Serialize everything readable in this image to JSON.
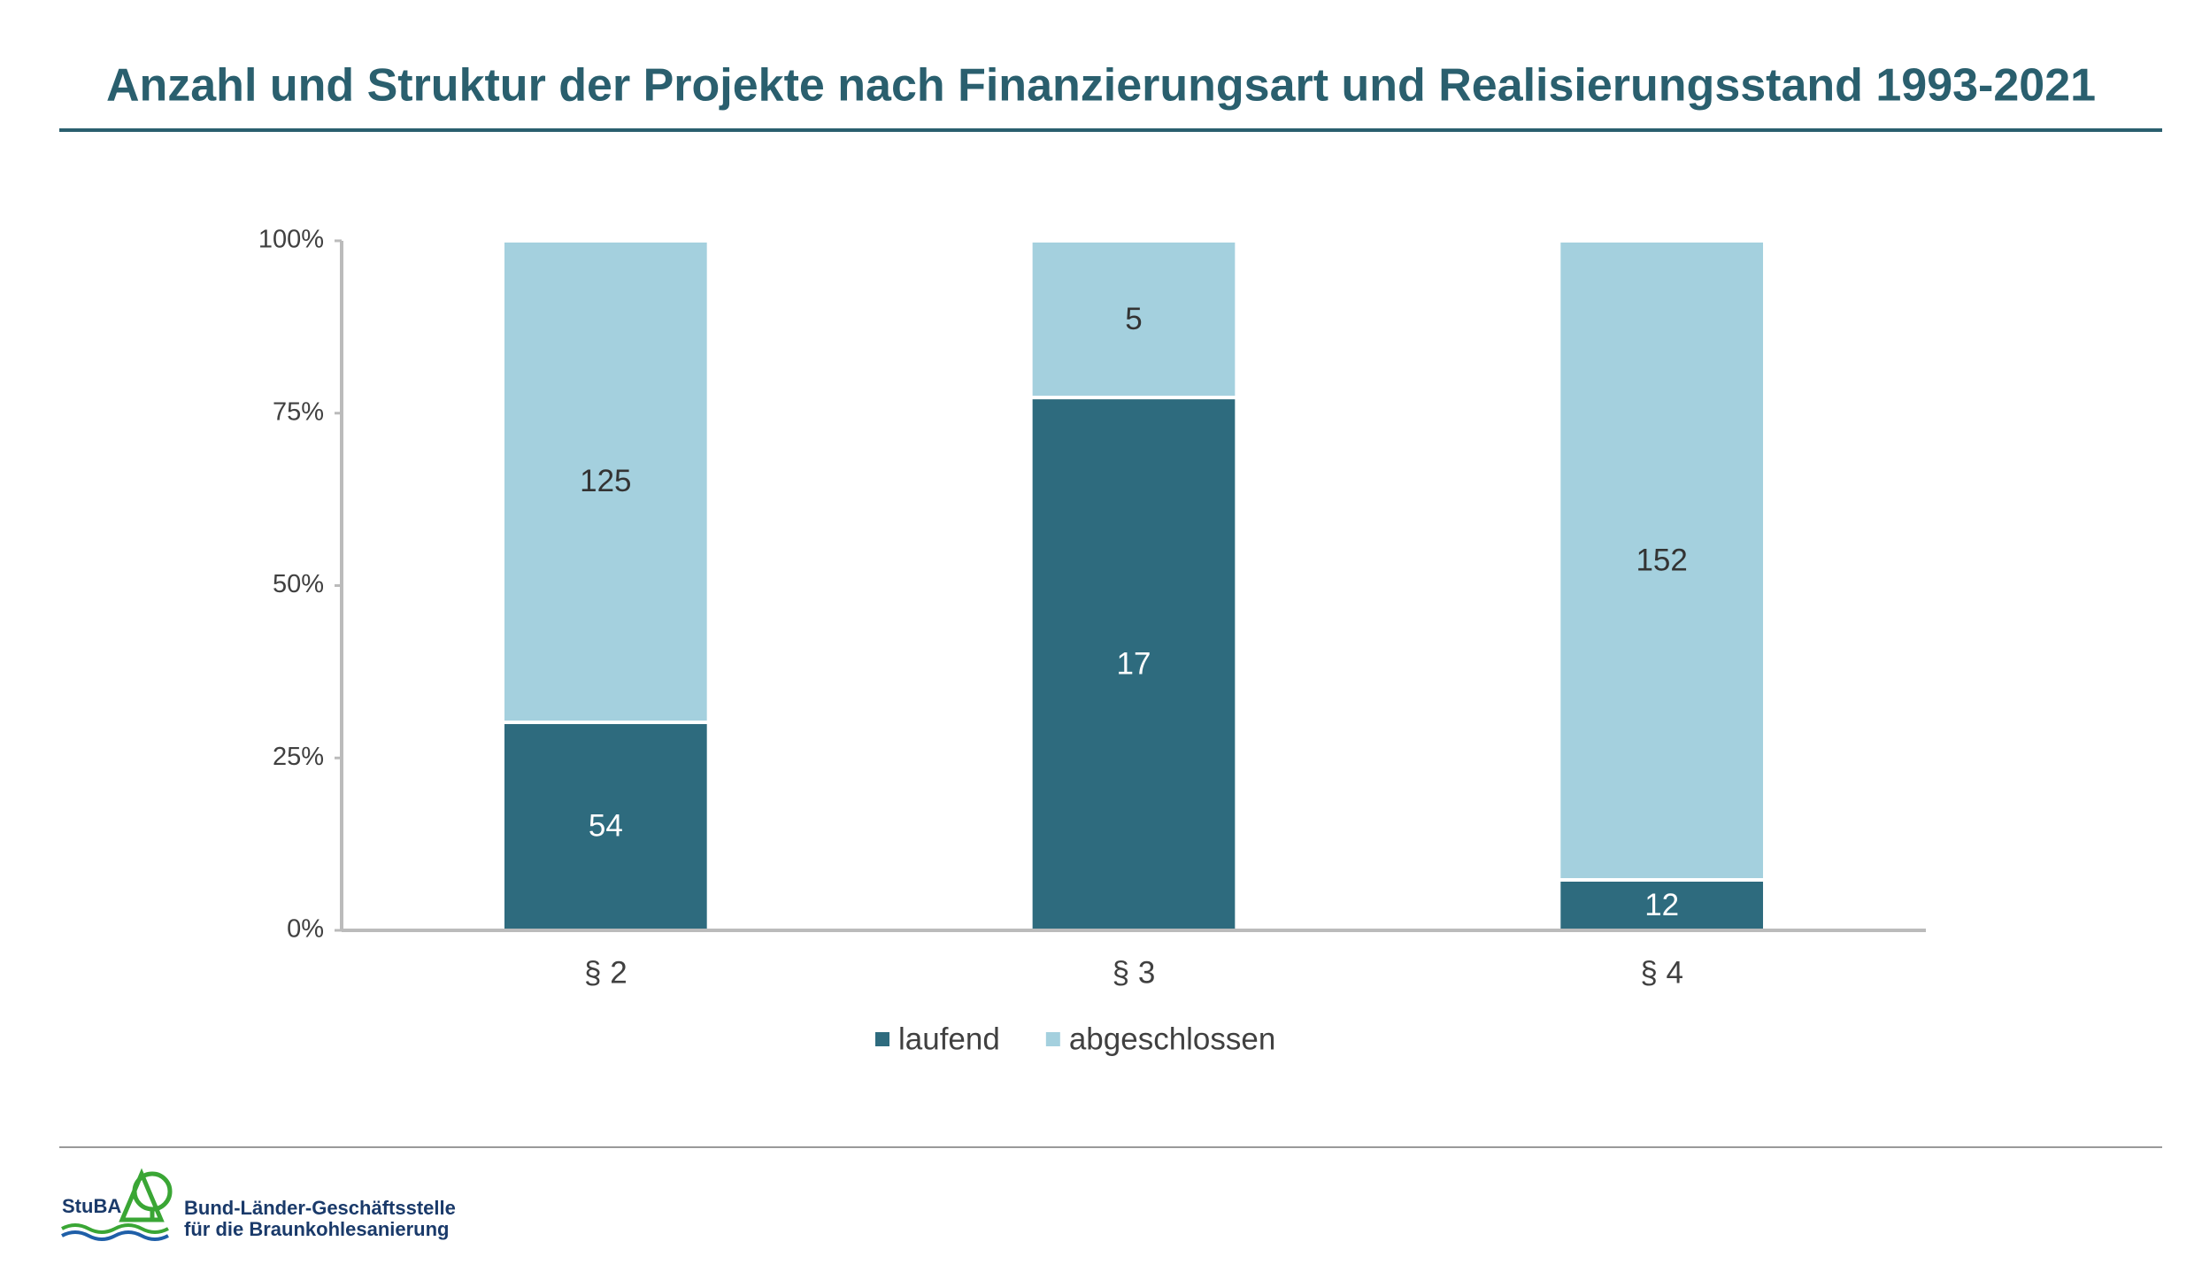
{
  "chart_data": {
    "type": "bar",
    "stacking": "percent",
    "title": "Anzahl und Struktur der Projekte nach Finanzierungsart und Realisierungsstand 1993-2021",
    "categories": [
      "§ 2",
      "§ 3",
      "§ 4"
    ],
    "series": [
      {
        "name": "laufend",
        "color": "#2e6b7e",
        "label_color": "#ffffff",
        "values": [
          54,
          17,
          12
        ]
      },
      {
        "name": "abgeschlossen",
        "color": "#a4d0de",
        "label_color": "#333333",
        "values": [
          125,
          5,
          152
        ]
      }
    ],
    "ylim": [
      0,
      100
    ],
    "yticks": [
      {
        "value": 0,
        "label": "0%"
      },
      {
        "value": 25,
        "label": "25%"
      },
      {
        "value": 50,
        "label": "50%"
      },
      {
        "value": 75,
        "label": "75%"
      },
      {
        "value": 100,
        "label": "100%"
      }
    ],
    "grid": false,
    "legend": "bottom"
  },
  "footer": {
    "logo": "StuBA",
    "lines": [
      "Bund-Länder-Geschäftsstelle",
      "für die Braunkohlesanierung"
    ]
  }
}
